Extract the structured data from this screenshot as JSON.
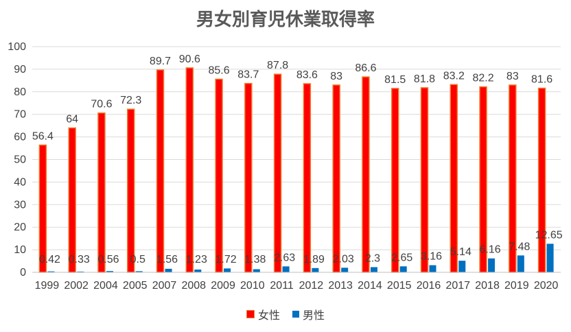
{
  "chart_data": {
    "type": "bar",
    "title": "男女別育児休業取得率",
    "xlabel": "",
    "ylabel": "",
    "ylim": [
      0,
      100
    ],
    "yticks": [
      0,
      10,
      20,
      30,
      40,
      50,
      60,
      70,
      80,
      90,
      100
    ],
    "grid": true,
    "legend_position": "bottom",
    "categories": [
      "1999",
      "2002",
      "2004",
      "2005",
      "2007",
      "2008",
      "2009",
      "2010",
      "2011",
      "2012",
      "2013",
      "2014",
      "2015",
      "2016",
      "2017",
      "2018",
      "2019",
      "2020"
    ],
    "series": [
      {
        "name": "女性",
        "color": "#ff0000",
        "border": "#ed7d31",
        "values": [
          56.4,
          64,
          70.6,
          72.3,
          89.7,
          90.6,
          85.6,
          83.7,
          87.8,
          83.6,
          83,
          86.6,
          81.5,
          81.8,
          83.2,
          82.2,
          83,
          81.6
        ]
      },
      {
        "name": "男性",
        "color": "#0070c0",
        "border": "#0070c0",
        "values": [
          0.42,
          0.33,
          0.56,
          0.5,
          1.56,
          1.23,
          1.72,
          1.38,
          2.63,
          1.89,
          2.03,
          2.3,
          2.65,
          3.16,
          5.14,
          6.16,
          7.48,
          12.65
        ]
      }
    ]
  }
}
